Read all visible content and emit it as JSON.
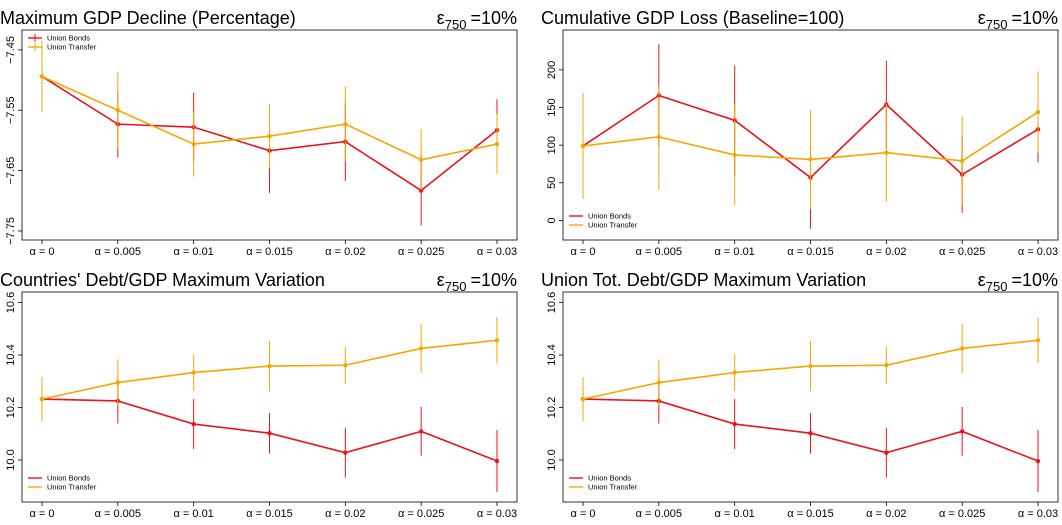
{
  "chart_data": [
    {
      "type": "line",
      "title": "Maximum GDP Decline (Percentage)",
      "annotation_symbol": "ε",
      "annotation_subscript": "750",
      "annotation_text": "=10%",
      "categories": [
        "α = 0",
        "α = 0.005",
        "α = 0.01",
        "α = 0.015",
        "α = 0.02",
        "α = 0.025",
        "α = 0.03"
      ],
      "ylim": [
        -7.765,
        -7.417
      ],
      "yticks": [
        {
          "value": -7.45,
          "label": "−7.45"
        },
        {
          "value": -7.55,
          "label": "−7.55"
        },
        {
          "value": -7.65,
          "label": "−7.65"
        },
        {
          "value": -7.75,
          "label": "−7.75"
        }
      ],
      "legend": "top-left",
      "series": [
        {
          "name": "Union Bonds",
          "color": "#e8141c",
          "values": [
            -7.494,
            -7.573,
            -7.578,
            -7.617,
            -7.602,
            -7.683,
            -7.583
          ],
          "errors": [
            0.059,
            0.055,
            0.057,
            0.07,
            0.065,
            0.058,
            0.051
          ]
        },
        {
          "name": "Union Transfer",
          "color": "#f5a700",
          "values": [
            -7.494,
            -7.55,
            -7.606,
            -7.593,
            -7.573,
            -7.632,
            -7.606
          ],
          "errors": [
            0.059,
            0.064,
            0.054,
            0.053,
            0.062,
            0.051,
            0.05
          ]
        }
      ]
    },
    {
      "type": "line",
      "title": "Cumulative GDP Loss (Baseline=100)",
      "annotation_symbol": "ε",
      "annotation_subscript": "750",
      "annotation_text": "=10%",
      "categories": [
        "α = 0",
        "α = 0.005",
        "α = 0.01",
        "α = 0.015",
        "α = 0.02",
        "α = 0.025",
        "α = 0.03"
      ],
      "ylim": [
        -26,
        253
      ],
      "yticks": [
        0,
        50,
        100,
        150,
        200
      ],
      "legend": "bottom-left",
      "series": [
        {
          "name": "Union Bonds",
          "color": "#e8141c",
          "values": [
            99,
            166,
            133,
            57,
            154,
            61,
            121
          ],
          "errors": [
            70,
            68,
            73,
            68,
            58,
            51,
            44
          ]
        },
        {
          "name": "Union Transfer",
          "color": "#f5a700",
          "values": [
            99,
            111,
            87,
            81,
            90,
            79,
            144
          ],
          "errors": [
            70,
            70,
            67,
            66,
            65,
            59,
            54
          ]
        }
      ]
    },
    {
      "type": "line",
      "title": "Countries' Debt/GDP Maximum Variation",
      "annotation_symbol": "ε",
      "annotation_subscript": "750",
      "annotation_text": "=10%",
      "categories": [
        "α = 0",
        "α = 0.005",
        "α = 0.01",
        "α = 0.015",
        "α = 0.02",
        "α = 0.025",
        "α = 0.03"
      ],
      "ylim": [
        9.84,
        10.64
      ],
      "yticks": [
        {
          "value": 10,
          "label": "10.0"
        },
        10.2,
        10.4,
        10.6
      ],
      "legend": "bottom-left",
      "series": [
        {
          "name": "Union Bonds",
          "color": "#e8141c",
          "values": [
            10.232,
            10.225,
            10.137,
            10.102,
            10.028,
            10.109,
            9.996
          ],
          "errors": [
            0.084,
            0.086,
            0.095,
            0.077,
            0.095,
            0.093,
            0.118
          ]
        },
        {
          "name": "Union Transfer",
          "color": "#f5a700",
          "values": [
            10.232,
            10.295,
            10.333,
            10.358,
            10.361,
            10.425,
            10.456
          ],
          "errors": [
            0.084,
            0.088,
            0.07,
            0.096,
            0.07,
            0.093,
            0.088
          ]
        }
      ]
    },
    {
      "type": "line",
      "title": "Union Tot. Debt/GDP Maximum Variation",
      "annotation_symbol": "ε",
      "annotation_subscript": "750",
      "annotation_text": "=10%",
      "categories": [
        "α = 0",
        "α = 0.005",
        "α = 0.01",
        "α = 0.015",
        "α = 0.02",
        "α = 0.025",
        "α = 0.03"
      ],
      "ylim": [
        9.84,
        10.64
      ],
      "yticks": [
        {
          "value": 10,
          "label": "10.0"
        },
        10.2,
        10.4,
        10.6
      ],
      "legend": "bottom-left",
      "series": [
        {
          "name": "Union Bonds",
          "color": "#e8141c",
          "values": [
            10.232,
            10.225,
            10.137,
            10.102,
            10.028,
            10.109,
            9.996
          ],
          "errors": [
            0.084,
            0.086,
            0.095,
            0.077,
            0.095,
            0.093,
            0.118
          ]
        },
        {
          "name": "Union Transfer",
          "color": "#f5a700",
          "values": [
            10.232,
            10.295,
            10.333,
            10.358,
            10.361,
            10.425,
            10.456
          ],
          "errors": [
            0.084,
            0.088,
            0.07,
            0.096,
            0.07,
            0.093,
            0.088
          ]
        }
      ]
    }
  ]
}
